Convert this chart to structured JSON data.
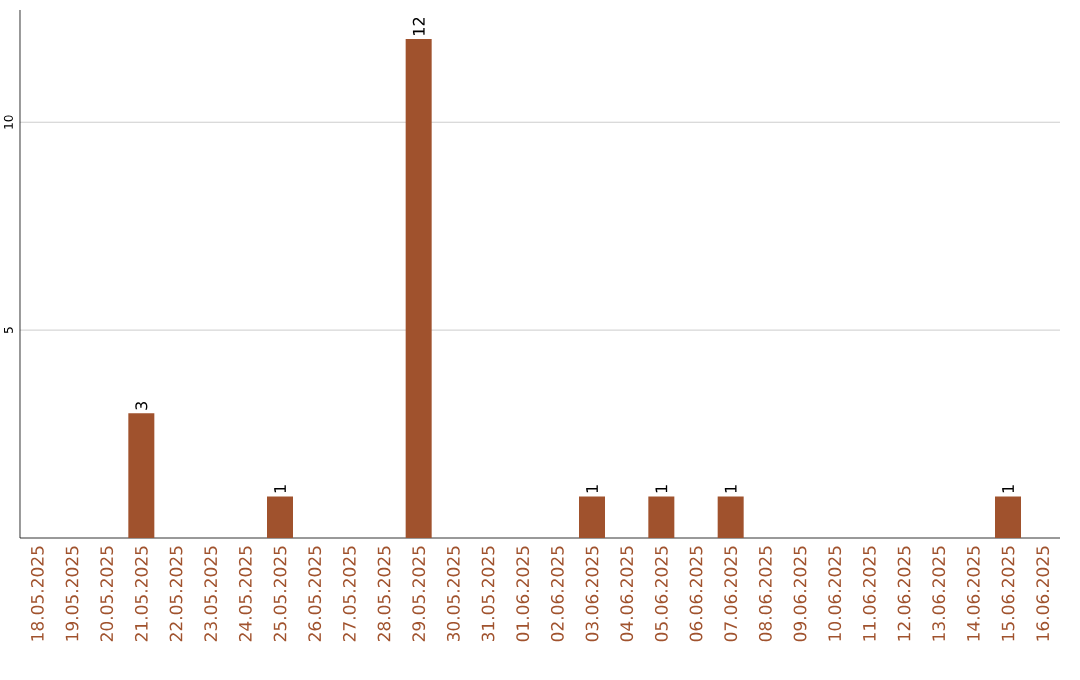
{
  "chart_data": {
    "type": "bar",
    "categories": [
      "18.05.2025",
      "19.05.2025",
      "20.05.2025",
      "21.05.2025",
      "22.05.2025",
      "23.05.2025",
      "24.05.2025",
      "25.05.2025",
      "26.05.2025",
      "27.05.2025",
      "28.05.2025",
      "29.05.2025",
      "30.05.2025",
      "31.05.2025",
      "01.06.2025",
      "02.06.2025",
      "03.06.2025",
      "04.06.2025",
      "05.06.2025",
      "06.06.2025",
      "07.06.2025",
      "08.06.2025",
      "09.06.2025",
      "10.06.2025",
      "11.06.2025",
      "12.06.2025",
      "13.06.2025",
      "14.06.2025",
      "15.06.2025",
      "16.06.2025"
    ],
    "values": [
      0,
      0,
      0,
      3,
      0,
      0,
      0,
      1,
      0,
      0,
      0,
      12,
      0,
      0,
      0,
      0,
      1,
      0,
      1,
      0,
      1,
      0,
      0,
      0,
      0,
      0,
      0,
      0,
      1,
      0
    ],
    "value_labels": [
      null,
      null,
      null,
      "3",
      null,
      null,
      null,
      "1",
      null,
      null,
      null,
      "12",
      null,
      null,
      null,
      null,
      "1",
      null,
      "1",
      null,
      "1",
      null,
      null,
      null,
      null,
      null,
      null,
      null,
      "1",
      null
    ],
    "color": "#a0522d",
    "ylim": [
      0,
      12.7
    ],
    "yticks": [
      5,
      10
    ],
    "grid": "y"
  }
}
